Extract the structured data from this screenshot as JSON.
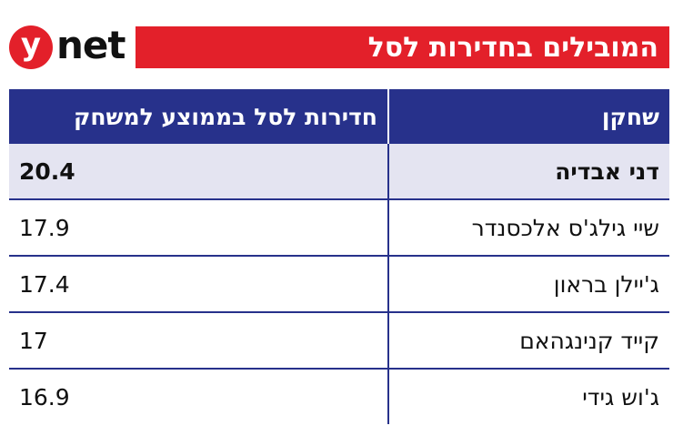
{
  "logo": {
    "y": "y",
    "net": "net"
  },
  "title": "המובילים בחדירות לסל",
  "chart_data": {
    "type": "table",
    "title": "המובילים בחדירות לסל",
    "columns": [
      "שחקן",
      "חדירות לסל בממוצע למשחק"
    ],
    "rows": [
      {
        "player": "דני אבדיה",
        "value": "20.4",
        "highlight": true
      },
      {
        "player": "שיי גילג'ס אלכסנדר",
        "value": "17.9",
        "highlight": false
      },
      {
        "player": "ג'יילן בראון",
        "value": "17.4",
        "highlight": false
      },
      {
        "player": "קייד קנינגהאם",
        "value": "17",
        "highlight": false
      },
      {
        "player": "ג'וש גידי",
        "value": "16.9",
        "highlight": false
      }
    ]
  },
  "colors": {
    "brand_red": "#e3202a",
    "header_navy": "#27318b",
    "highlight_row": "#e4e4f1"
  }
}
